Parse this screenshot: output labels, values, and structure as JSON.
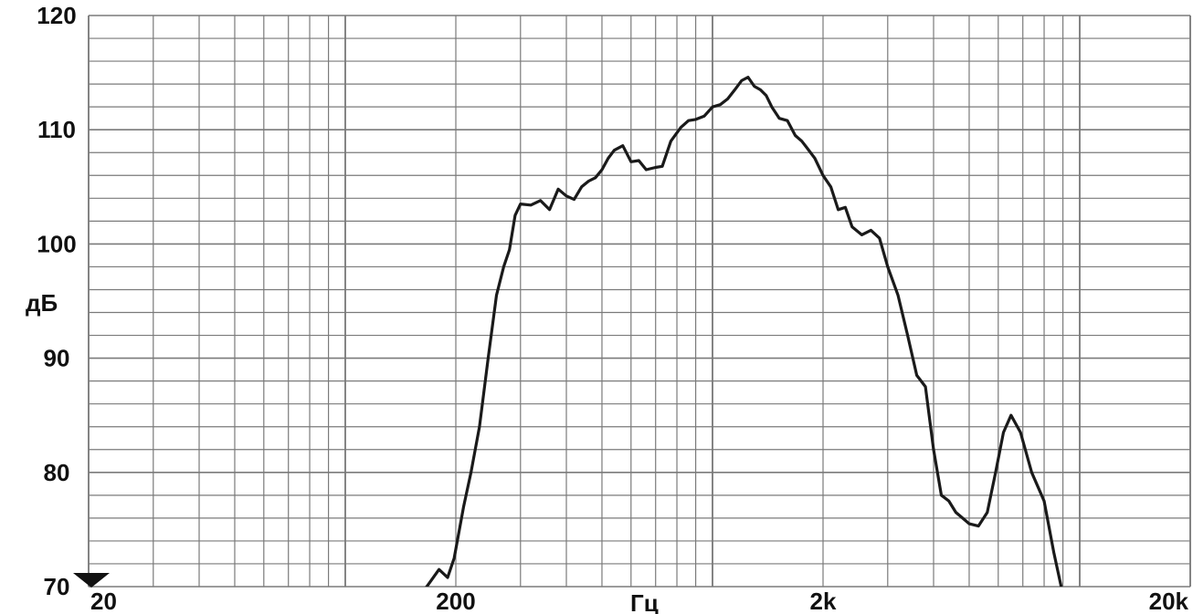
{
  "chart_data": {
    "type": "line",
    "xlabel": "Гц",
    "ylabel": "дБ",
    "x_scale": "log",
    "xlim": [
      20,
      20000
    ],
    "ylim": [
      70,
      120
    ],
    "grid": true,
    "y_ticks": [
      {
        "value": 120,
        "label": "120"
      },
      {
        "value": 110,
        "label": "110"
      },
      {
        "value": 100,
        "label": "100"
      },
      {
        "value": 90,
        "label": "90"
      },
      {
        "value": 80,
        "label": "80"
      },
      {
        "value": 70,
        "label": "70"
      }
    ],
    "x_ticks": [
      {
        "value": 20,
        "label": "20"
      },
      {
        "value": 200,
        "label": "200"
      },
      {
        "value": 2000,
        "label": "2k"
      },
      {
        "value": 20000,
        "label": "20k"
      }
    ],
    "colors": {
      "curve": "#1a1a1a",
      "grid": "#7a7a7a",
      "background": "#ffffff"
    },
    "series": [
      {
        "x": [
          165,
          180,
          190,
          198,
          210,
          220,
          232,
          245,
          258,
          270,
          280,
          290,
          300,
          320,
          340,
          360,
          380,
          400,
          420,
          440,
          460,
          480,
          500,
          520,
          540,
          570,
          600,
          630,
          660,
          700,
          730,
          770,
          820,
          860,
          900,
          950,
          1000,
          1050,
          1100,
          1150,
          1200,
          1250,
          1300,
          1350,
          1400,
          1450,
          1520,
          1600,
          1680,
          1750,
          1800,
          1900,
          2000,
          2100,
          2200,
          2300,
          2400,
          2550,
          2700,
          2850,
          3000,
          3200,
          3400,
          3600,
          3800,
          4000,
          4200,
          4400,
          4600,
          4800,
          5000,
          5300,
          5600,
          5900,
          6200,
          6500,
          6900,
          7400,
          8000,
          8500,
          9000,
          9500,
          10000,
          10600,
          11100,
          11600,
          12100,
          12600,
          13100,
          13600,
          14000,
          14600
        ],
        "y": [
          69.8,
          71.5,
          70.8,
          72.5,
          77.0,
          80.0,
          84.0,
          90.0,
          95.5,
          98.0,
          99.5,
          102.5,
          103.5,
          103.4,
          103.8,
          103.0,
          104.8,
          104.2,
          103.9,
          105.0,
          105.5,
          105.8,
          106.5,
          107.5,
          108.2,
          108.6,
          107.2,
          107.3,
          106.5,
          106.7,
          106.8,
          109.0,
          110.2,
          110.8,
          110.9,
          111.2,
          112.0,
          112.2,
          112.7,
          113.5,
          114.3,
          114.6,
          113.8,
          113.5,
          113.0,
          112.0,
          111.0,
          110.8,
          109.5,
          109.0,
          108.5,
          107.5,
          106.0,
          105.0,
          103.0,
          103.2,
          101.5,
          100.8,
          101.2,
          100.5,
          98.0,
          95.5,
          92.0,
          88.5,
          87.5,
          82.0,
          78.0,
          77.5,
          76.5,
          76.0,
          75.5,
          75.3,
          76.5,
          80.0,
          83.5,
          85.0,
          83.5,
          80.0,
          77.5,
          73.0,
          69.3,
          69.0,
          69.0,
          69.0,
          69.0,
          69.0,
          69.0,
          69.0,
          69.0,
          69.0,
          69.0,
          69.0
        ]
      }
    ]
  }
}
